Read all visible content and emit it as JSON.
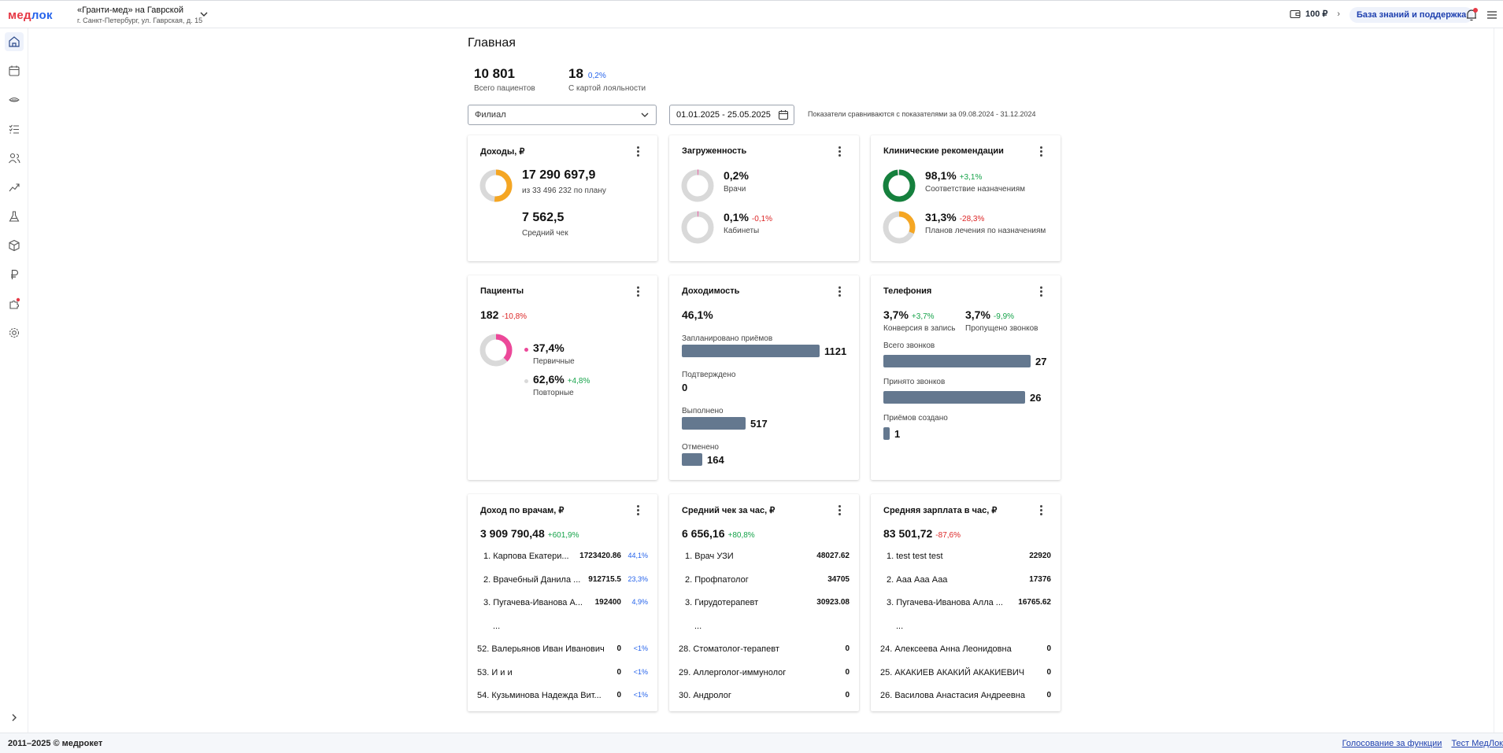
{
  "app": {
    "logo_a": "мед",
    "logo_b": "лок",
    "clinic_name": "«Гранти-мед» на Гаврской",
    "clinic_address": "г. Санкт-Петербург, ул. Гаврская, д. 15",
    "balance": "100 ₽",
    "kb_button": "База знаний и поддержка",
    "icons": {
      "bell": "bell-icon",
      "menu": "menu-icon",
      "wallet": "wallet-icon"
    }
  },
  "sidebar": {
    "items": [
      "home-icon",
      "calendar-icon",
      "dental-icon",
      "checklist-icon",
      "users-icon",
      "analytics-icon",
      "flask-icon",
      "box-icon",
      "ruble-icon",
      "puzzle-icon",
      "gear-icon"
    ]
  },
  "page": {
    "title": "Главная",
    "stats": [
      {
        "value": "10 801",
        "label": "Всего пациентов",
        "pct": ""
      },
      {
        "value": "18",
        "label": "С картой лояльности",
        "pct": "0,2%"
      }
    ],
    "branch_placeholder": "Филиал",
    "date_range": "01.01.2025 - 25.05.2025",
    "compare_note": "Показатели сравниваются с показателями за 09.08.2024 - 31.12.2024"
  },
  "cards": {
    "income": {
      "title": "Доходы, ₽",
      "total": "17 290 697,9",
      "plan": "из 33 496 232 по плану",
      "plan_fraction": 0.516,
      "avg": "7 562,5",
      "avg_label": "Средний чек"
    },
    "load": {
      "title": "Загруженность",
      "doctors_value": "0,2%",
      "doctors_label": "Врачи",
      "doctors_fraction": 0.002,
      "rooms_value": "0,1%",
      "rooms_change": "-0,1%",
      "rooms_label": "Кабинеты",
      "rooms_fraction": 0.001
    },
    "clinical": {
      "title": "Клинические рекомендации",
      "v1": "98,1%",
      "v1_change": "+3,1%",
      "v1_label": "Соответствие назначениям",
      "v1_fraction": 0.981,
      "v2": "31,3%",
      "v2_change": "-28,3%",
      "v2_label": "Планов лечения по назначениям",
      "v2_fraction": 0.313
    },
    "patients": {
      "title": "Пациенты",
      "total": "182",
      "total_change": "-10,8%",
      "primary": "37,4%",
      "primary_label": "Первичные",
      "primary_fraction": 0.374,
      "repeat": "62,6%",
      "repeat_change": "+4,8%",
      "repeat_label": "Повторные"
    },
    "profit": {
      "title": "Доходимость",
      "value": "46,1%",
      "bars": [
        {
          "label": "Запланировано приёмов",
          "value": 1121,
          "text": "1121"
        },
        {
          "label": "Подтверждено",
          "value": 0,
          "text": "0"
        },
        {
          "label": "Выполнено",
          "value": 517,
          "text": "517"
        },
        {
          "label": "Отменено",
          "value": 164,
          "text": "164"
        }
      ]
    },
    "phone": {
      "title": "Телефония",
      "conv": "3,7%",
      "conv_change": "+3,7%",
      "conv_label": "Конверсия в запись",
      "miss": "3,7%",
      "miss_change": "-9,9%",
      "miss_label": "Пропущено звонков",
      "bars": [
        {
          "label": "Всего звонков",
          "value": 27,
          "text": "27"
        },
        {
          "label": "Принято звонков",
          "value": 26,
          "text": "26"
        },
        {
          "label": "Приёмов создано",
          "value": 1,
          "text": "1"
        }
      ]
    },
    "doctors_income": {
      "title": "Доход по врачам, ₽",
      "total": "3 909 790,48",
      "change": "+601,9%",
      "rows": [
        {
          "n": "1. Карпова Екатери...",
          "v": "1723420.86",
          "p": "44,1%"
        },
        {
          "n": "2. Врачебный Данила ...",
          "v": "912715.5",
          "p": "23,3%"
        },
        {
          "n": "3. Пугачева-Иванова А...",
          "v": "192400",
          "p": "4,9%"
        },
        {
          "n": "...",
          "v": "",
          "p": ""
        },
        {
          "n": "52. Валерьянов Иван Иванович",
          "v": "0",
          "p": "<1%"
        },
        {
          "n": "53. И и и",
          "v": "0",
          "p": "<1%"
        },
        {
          "n": "54. Кузьминова Надежда Вит...",
          "v": "0",
          "p": "<1%"
        }
      ]
    },
    "avg_check": {
      "title": "Средний чек за час, ₽",
      "total": "6 656,16",
      "change": "+80,8%",
      "rows": [
        {
          "n": "1. Врач УЗИ",
          "v": "48027.62"
        },
        {
          "n": "2. Профпатолог",
          "v": "34705"
        },
        {
          "n": "3. Гирудотерапевт",
          "v": "30923.08"
        },
        {
          "n": "...",
          "v": ""
        },
        {
          "n": "28. Стоматолог-терапевт",
          "v": "0"
        },
        {
          "n": "29. Аллерголог-иммунолог",
          "v": "0"
        },
        {
          "n": "30. Андролог",
          "v": "0"
        }
      ]
    },
    "avg_salary": {
      "title": "Средняя зарплата в час, ₽",
      "total": "83 501,72",
      "change": "-87,6%",
      "rows": [
        {
          "n": "1. test test test",
          "v": "22920"
        },
        {
          "n": "2. Ааа Ааа Ааа",
          "v": "17376"
        },
        {
          "n": "3. Пугачева-Иванова Алла ...",
          "v": "16765.62"
        },
        {
          "n": "...",
          "v": ""
        },
        {
          "n": "24. Алексеева Анна Леонидовна",
          "v": "0"
        },
        {
          "n": "25. АКАКИЕВ АКАКИЙ АКАКИЕВИЧ",
          "v": "0"
        },
        {
          "n": "26. Василова Анастасия Андреевна",
          "v": "0"
        }
      ]
    }
  },
  "footer": {
    "copyright": "2011–2025 © медрокет",
    "link1": "Голосование за функции",
    "link2": "Тест МедЛок"
  },
  "colors": {
    "accent": "#2563eb",
    "bar": "#64788f",
    "orange": "#f5a623",
    "green": "#15803d",
    "pink": "#ec4899",
    "ring_bg": "#d9d9d9"
  }
}
